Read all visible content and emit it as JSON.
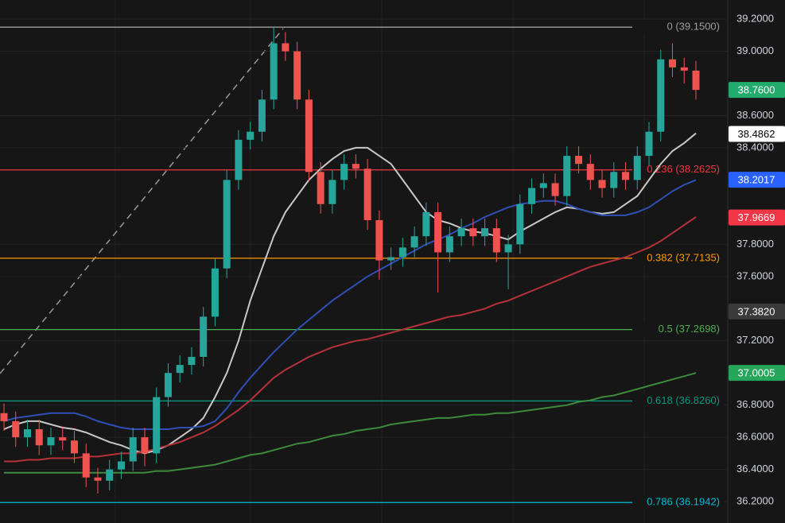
{
  "chart_data": {
    "type": "candlestick",
    "ylim": [
      36.067,
      39.319
    ],
    "yticks": [
      {
        "value": 36.2,
        "label": "36.2000"
      },
      {
        "value": 36.4,
        "label": "36.4000"
      },
      {
        "value": 36.6,
        "label": "36.6000"
      },
      {
        "value": 36.8,
        "label": "36.8000"
      },
      {
        "value": 37.2,
        "label": "37.2000"
      },
      {
        "value": 37.6,
        "label": "37.6000"
      },
      {
        "value": 37.8,
        "label": "37.8000"
      },
      {
        "value": 38.4,
        "label": "38.4000"
      },
      {
        "value": 38.6,
        "label": "38.6000"
      },
      {
        "value": 39.0,
        "label": "39.0000"
      },
      {
        "value": 39.2,
        "label": "39.2000"
      }
    ],
    "grid": true,
    "up_color": "#26a69a",
    "down_color": "#ef5350",
    "open": [
      36.75,
      36.7,
      36.6,
      36.65,
      36.55,
      36.6,
      36.58,
      36.5,
      36.35,
      36.33,
      36.4,
      36.45,
      36.6,
      36.5,
      36.85,
      37.0,
      37.05,
      37.1,
      37.35,
      37.65,
      38.2,
      38.45,
      38.5,
      38.7,
      39.05,
      39.0,
      38.7,
      38.25,
      38.05,
      38.2,
      38.3,
      38.27,
      37.95,
      37.7,
      37.72,
      37.78,
      37.85,
      38.0,
      37.75,
      37.85,
      37.9,
      37.85,
      37.9,
      37.75,
      37.8,
      38.05,
      38.15,
      38.18,
      38.1,
      38.35,
      38.3,
      38.2,
      38.15,
      38.25,
      38.2,
      38.35,
      38.5,
      38.95,
      38.9,
      38.88
    ],
    "high": [
      36.81,
      36.76,
      36.71,
      36.71,
      36.66,
      36.66,
      36.64,
      36.56,
      36.41,
      36.46,
      36.51,
      36.66,
      36.66,
      36.91,
      37.06,
      37.11,
      37.16,
      37.41,
      37.71,
      38.26,
      38.51,
      38.56,
      38.76,
      39.15,
      39.12,
      39.06,
      38.76,
      38.31,
      38.26,
      38.36,
      38.36,
      38.33,
      38.01,
      37.78,
      37.84,
      37.91,
      38.06,
      38.06,
      37.91,
      37.96,
      37.96,
      37.96,
      37.96,
      37.86,
      38.11,
      38.21,
      38.24,
      38.24,
      38.41,
      38.41,
      38.36,
      38.26,
      38.31,
      38.31,
      38.41,
      38.56,
      39.01,
      39.05,
      38.96,
      38.94
    ],
    "low": [
      36.64,
      36.54,
      36.54,
      36.49,
      36.49,
      36.52,
      36.44,
      36.29,
      36.25,
      36.27,
      36.34,
      36.39,
      36.42,
      36.44,
      36.79,
      36.94,
      36.99,
      37.04,
      37.29,
      37.59,
      38.14,
      38.39,
      38.44,
      38.64,
      38.94,
      38.64,
      38.19,
      37.99,
      37.99,
      38.14,
      38.21,
      37.89,
      37.58,
      37.64,
      37.66,
      37.72,
      37.79,
      37.5,
      37.69,
      37.79,
      37.79,
      37.79,
      37.69,
      37.52,
      37.74,
      37.99,
      38.09,
      38.04,
      38.04,
      38.24,
      38.14,
      38.09,
      38.09,
      38.14,
      38.14,
      38.29,
      38.44,
      38.84,
      38.8,
      38.7
    ],
    "close": [
      36.7,
      36.6,
      36.65,
      36.55,
      36.6,
      36.58,
      36.5,
      36.35,
      36.33,
      36.4,
      36.45,
      36.6,
      36.5,
      36.85,
      37.0,
      37.05,
      37.1,
      37.35,
      37.65,
      38.2,
      38.45,
      38.5,
      38.7,
      39.05,
      39.0,
      38.7,
      38.25,
      38.05,
      38.2,
      38.3,
      38.27,
      37.95,
      37.7,
      37.72,
      37.78,
      37.85,
      38.0,
      37.75,
      37.85,
      37.9,
      37.85,
      37.9,
      37.75,
      37.8,
      38.05,
      38.15,
      38.18,
      38.1,
      38.35,
      38.3,
      38.2,
      38.15,
      38.25,
      38.2,
      38.35,
      38.5,
      38.95,
      38.9,
      38.88,
      38.76
    ],
    "moving_averages": [
      {
        "color": "#c8c8c8",
        "values": [
          36.65,
          36.68,
          36.7,
          36.7,
          36.68,
          36.66,
          36.65,
          36.63,
          36.6,
          36.57,
          36.55,
          36.52,
          36.5,
          36.52,
          36.55,
          36.6,
          36.65,
          36.72,
          36.85,
          37.0,
          37.2,
          37.45,
          37.65,
          37.85,
          38.0,
          38.1,
          38.2,
          38.27,
          38.33,
          38.38,
          38.4,
          38.4,
          38.35,
          38.3,
          38.2,
          38.1,
          38.0,
          37.95,
          37.93,
          37.9,
          37.88,
          37.87,
          37.85,
          37.83,
          37.88,
          37.92,
          37.96,
          38.0,
          38.03,
          38.02,
          38.0,
          37.99,
          38.0,
          38.05,
          38.1,
          38.2,
          38.3,
          38.38,
          38.43,
          38.49
        ]
      },
      {
        "color": "#2f4fb5",
        "values": [
          36.7,
          36.72,
          36.73,
          36.74,
          36.75,
          36.75,
          36.75,
          36.73,
          36.7,
          36.68,
          36.66,
          36.65,
          36.65,
          36.65,
          36.65,
          36.66,
          36.66,
          36.67,
          36.7,
          36.78,
          36.88,
          36.97,
          37.05,
          37.13,
          37.2,
          37.27,
          37.33,
          37.39,
          37.45,
          37.5,
          37.55,
          37.6,
          37.64,
          37.68,
          37.72,
          37.76,
          37.8,
          37.83,
          37.86,
          37.9,
          37.93,
          37.97,
          38.0,
          38.03,
          38.05,
          38.06,
          38.07,
          38.07,
          38.05,
          38.02,
          38.0,
          37.98,
          37.98,
          37.98,
          38.0,
          38.03,
          38.08,
          38.13,
          38.17,
          38.2
        ]
      },
      {
        "color": "#b5323a",
        "values": [
          36.45,
          36.45,
          36.46,
          36.46,
          36.47,
          36.47,
          36.47,
          36.48,
          36.48,
          36.49,
          36.5,
          36.5,
          36.51,
          36.53,
          36.55,
          36.57,
          36.6,
          36.63,
          36.67,
          36.72,
          36.77,
          36.83,
          36.9,
          36.97,
          37.02,
          37.06,
          37.1,
          37.13,
          37.16,
          37.18,
          37.2,
          37.21,
          37.23,
          37.25,
          37.27,
          37.29,
          37.31,
          37.33,
          37.35,
          37.36,
          37.38,
          37.4,
          37.43,
          37.45,
          37.48,
          37.51,
          37.54,
          37.57,
          37.6,
          37.63,
          37.66,
          37.68,
          37.7,
          37.72,
          37.75,
          37.78,
          37.82,
          37.87,
          37.92,
          37.97
        ]
      },
      {
        "color": "#3d8a3d",
        "values": [
          36.38,
          36.38,
          36.38,
          36.38,
          36.38,
          36.38,
          36.38,
          36.38,
          36.38,
          36.38,
          36.38,
          36.38,
          36.38,
          36.39,
          36.39,
          36.4,
          36.41,
          36.42,
          36.43,
          36.45,
          36.47,
          36.49,
          36.5,
          36.52,
          36.54,
          36.56,
          36.57,
          36.59,
          36.61,
          36.62,
          36.64,
          36.65,
          36.66,
          36.68,
          36.69,
          36.7,
          36.71,
          36.72,
          36.72,
          36.73,
          36.74,
          36.74,
          36.75,
          36.75,
          36.76,
          36.77,
          36.78,
          36.79,
          36.8,
          36.82,
          36.83,
          36.85,
          36.86,
          36.88,
          36.9,
          36.92,
          36.94,
          36.96,
          36.98,
          37.0
        ]
      }
    ],
    "fib_levels": [
      {
        "label": "0 (39.1500)",
        "value": 39.15,
        "color": "#9e9e9e"
      },
      {
        "label": "0.236 (38.2625)",
        "value": 38.2625,
        "color": "#f23645"
      },
      {
        "label": "0.382 (37.7135)",
        "value": 37.7135,
        "color": "#ff9800"
      },
      {
        "label": "0.5 (37.2698)",
        "value": 37.2698,
        "color": "#4caf50"
      },
      {
        "label": "0.618 (36.8260)",
        "value": 36.826,
        "color": "#089981"
      },
      {
        "label": "0.786 (36.1942)",
        "value": 36.1942,
        "color": "#00bcd4"
      }
    ],
    "price_badges": [
      {
        "label": "38.7600",
        "value": 38.76,
        "color": "#22ab6c",
        "text_color": "#ffffff"
      },
      {
        "label": "38.4862",
        "value": 38.4862,
        "color": "#ffffff",
        "text_color": "#000000"
      },
      {
        "label": "38.2017",
        "value": 38.2017,
        "color": "#2962ff",
        "text_color": "#ffffff"
      },
      {
        "label": "37.9669",
        "value": 37.9669,
        "color": "#f23645",
        "text_color": "#ffffff"
      },
      {
        "label": "37.3820",
        "value": 37.382,
        "color": "#3a3a3a",
        "text_color": "#ffffff"
      },
      {
        "label": "37.0005",
        "value": 37.0005,
        "color": "#26a65b",
        "text_color": "#ffffff"
      }
    ]
  }
}
